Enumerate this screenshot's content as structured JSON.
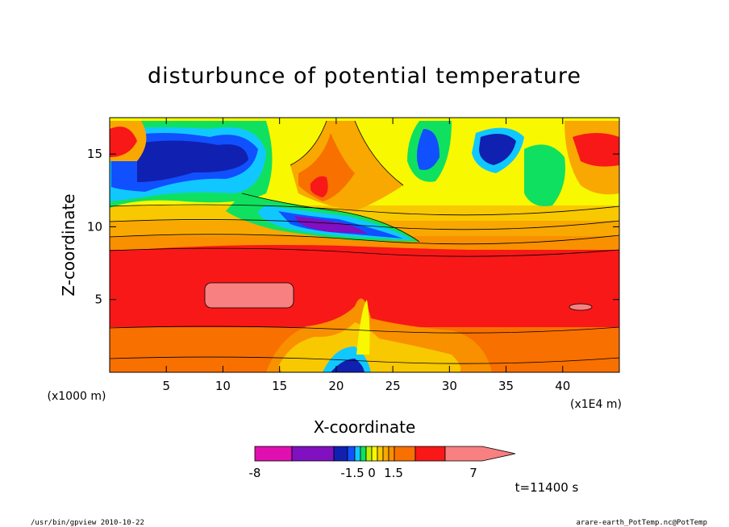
{
  "chart_data": {
    "type": "heatmap",
    "title": "disturbunce of potential temperature",
    "xlabel": "X-coordinate",
    "ylabel": "Z-coordinate",
    "x_scale_label": "(x1E4 m)",
    "y_scale_label": "(x1000 m)",
    "xlim": [
      0,
      45
    ],
    "ylim": [
      0,
      17.5
    ],
    "x_ticks": [
      5,
      10,
      15,
      20,
      25,
      30,
      35,
      40
    ],
    "y_ticks": [
      5,
      10,
      15
    ],
    "x_tick_labels": [
      "5",
      "10",
      "15",
      "20",
      "25",
      "30",
      "35",
      "40"
    ],
    "y_tick_labels": [
      "5",
      "10",
      "15"
    ],
    "colorbar": {
      "levels": [
        -8,
        -6,
        -4,
        -2,
        -1.5,
        -1,
        -0.5,
        0,
        0.5,
        1,
        1.5,
        2,
        3,
        5,
        7
      ],
      "colors": [
        "#e010b0",
        "#8010c0",
        "#1020b0",
        "#1050ff",
        "#10c8ff",
        "#10e060",
        "#c0f000",
        "#f8f800",
        "#f8c800",
        "#f8a800",
        "#f89000",
        "#f87000",
        "#f81818",
        "#f88080"
      ],
      "tick_labels": [
        "-8",
        "-1.5",
        "0",
        "1.5",
        "7"
      ]
    },
    "time_label": "t=11400 s",
    "grid": false,
    "legend": "colorbar-bottom"
  },
  "footer": {
    "left": "/usr/bin/gpview   2010-10-22",
    "right": "arare-earth_PotTemp.nc@PotTemp"
  }
}
